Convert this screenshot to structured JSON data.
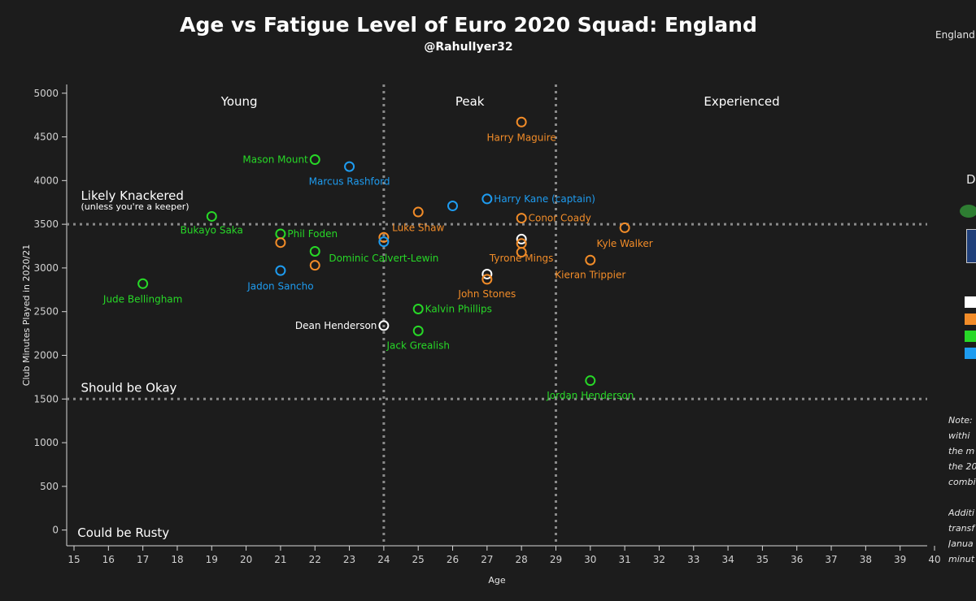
{
  "header": {
    "title": "Age vs Fatigue Level of Euro 2020 Squad: England",
    "subtitle": "@RahulIyer32",
    "team_label": "England"
  },
  "side_panel": {
    "letter": "D",
    "note_text": "Note:\nwithi\nthe m\nthe 20\ncombi\n\nAdditi\ntransf\nJanua\nminut"
  },
  "colors": {
    "background": "#1c1c1c",
    "goalkeeper": "#ffffff",
    "defender": "#f28c28",
    "midfielder": "#27d827",
    "forward": "#1e9cf0"
  },
  "chart_data": {
    "type": "scatter",
    "title": "Age vs Fatigue Level of Euro 2020 Squad: England",
    "xlabel": "Age",
    "ylabel": "Club Minutes Played in 2020/21",
    "xlim": [
      15,
      40
    ],
    "ylim": [
      -180,
      5100
    ],
    "xticks": [
      "15",
      "16",
      "17",
      "18",
      "19",
      "20",
      "21",
      "22",
      "23",
      "24",
      "25",
      "26",
      "27",
      "28",
      "29",
      "30",
      "31",
      "32",
      "33",
      "34",
      "35",
      "36",
      "37",
      "38",
      "39",
      "40"
    ],
    "yticks": [
      "0",
      "500",
      "1000",
      "1500",
      "2000",
      "2500",
      "3000",
      "3500",
      "4000",
      "4500",
      "5000"
    ],
    "grid": false,
    "vlines": [
      24,
      29
    ],
    "hlines": [
      1500,
      3500
    ],
    "zones": [
      {
        "text": "Young",
        "x": 19.8,
        "y": 4860
      },
      {
        "text": "Peak",
        "x": 26.5,
        "y": 4860
      },
      {
        "text": "Experienced",
        "x": 34.4,
        "y": 4860
      }
    ],
    "annotations": [
      {
        "text": "Likely Knackered",
        "x": 15.2,
        "y": 3780,
        "size": "large"
      },
      {
        "text": "(unless you're a keeper)",
        "x": 15.2,
        "y": 3670,
        "size": "small"
      },
      {
        "text": "Should be Okay",
        "x": 15.2,
        "y": 1580,
        "size": "large"
      },
      {
        "text": "Could be Rusty",
        "x": 15.1,
        "y": -80,
        "size": "large"
      }
    ],
    "points": [
      {
        "name": "Harry Maguire",
        "x": 28,
        "y": 4670,
        "color": "#f28c28",
        "lx": 28,
        "ly": 4490,
        "anchor": "middle"
      },
      {
        "name": "Mason Mount",
        "x": 22,
        "y": 4240,
        "color": "#27d827",
        "lx": 21.8,
        "ly": 4240,
        "anchor": "end"
      },
      {
        "name": "Marcus Rashford",
        "x": 23,
        "y": 4160,
        "color": "#1e9cf0",
        "lx": 23,
        "ly": 3990,
        "anchor": "middle"
      },
      {
        "name": "Harry Kane (captain)",
        "x": 27,
        "y": 3790,
        "color": "#1e9cf0",
        "lx": 27.2,
        "ly": 3790,
        "anchor": "start"
      },
      {
        "name": "",
        "x": 26,
        "y": 3710,
        "color": "#1e9cf0"
      },
      {
        "name": "",
        "x": 25,
        "y": 3640,
        "color": "#f28c28"
      },
      {
        "name": "Conor Coady",
        "x": 28,
        "y": 3570,
        "color": "#f28c28",
        "lx": 28.2,
        "ly": 3570,
        "anchor": "start"
      },
      {
        "name": "Bukayo Saka",
        "x": 19,
        "y": 3590,
        "color": "#27d827",
        "lx": 19,
        "ly": 3430,
        "anchor": "middle"
      },
      {
        "name": "Kyle Walker",
        "x": 31,
        "y": 3460,
        "color": "#f28c28",
        "lx": 31,
        "ly": 3280,
        "anchor": "middle"
      },
      {
        "name": "Luke Shaw",
        "x": 24,
        "y": 3350,
        "color": "#f28c28",
        "lx": 25,
        "ly": 3460,
        "anchor": "middle"
      },
      {
        "name": "Phil Foden",
        "x": 21,
        "y": 3390,
        "color": "#27d827",
        "lx": 21.2,
        "ly": 3390,
        "anchor": "start"
      },
      {
        "name": "",
        "x": 21,
        "y": 3290,
        "color": "#f28c28"
      },
      {
        "name": "",
        "x": 28,
        "y": 3330,
        "color": "#ffffff"
      },
      {
        "name": "",
        "x": 28,
        "y": 3280,
        "color": "#f28c28"
      },
      {
        "name": "",
        "x": 24,
        "y": 3300,
        "color": "#1e9cf0"
      },
      {
        "name": "Dominic Calvert-Lewin",
        "x": 22,
        "y": 3190,
        "color": "#27d827",
        "lx": 24,
        "ly": 3110,
        "anchor": "middle"
      },
      {
        "name": "Tyrone Mings",
        "x": 28,
        "y": 3180,
        "color": "#f28c28",
        "lx": 28,
        "ly": 3110,
        "anchor": "middle"
      },
      {
        "name": "Kieran Trippier",
        "x": 30,
        "y": 3090,
        "color": "#f28c28",
        "lx": 30,
        "ly": 2920,
        "anchor": "middle"
      },
      {
        "name": "",
        "x": 22,
        "y": 3030,
        "color": "#f28c28"
      },
      {
        "name": "Jadon Sancho",
        "x": 21,
        "y": 2970,
        "color": "#1e9cf0",
        "lx": 21,
        "ly": 2790,
        "anchor": "middle"
      },
      {
        "name": "",
        "x": 27,
        "y": 2930,
        "color": "#ffffff"
      },
      {
        "name": "John Stones",
        "x": 27,
        "y": 2870,
        "color": "#f28c28",
        "lx": 27,
        "ly": 2700,
        "anchor": "middle"
      },
      {
        "name": "Jude Bellingham",
        "x": 17,
        "y": 2820,
        "color": "#27d827",
        "lx": 17,
        "ly": 2640,
        "anchor": "middle"
      },
      {
        "name": "Kalvin Phillips",
        "x": 25,
        "y": 2530,
        "color": "#27d827",
        "lx": 25.2,
        "ly": 2530,
        "anchor": "start"
      },
      {
        "name": "Dean Henderson",
        "x": 24,
        "y": 2340,
        "color": "#ffffff",
        "lx": 23.8,
        "ly": 2340,
        "anchor": "end"
      },
      {
        "name": "Jack Grealish",
        "x": 25,
        "y": 2280,
        "color": "#27d827",
        "lx": 25,
        "ly": 2110,
        "anchor": "middle"
      },
      {
        "name": "Jordan Henderson",
        "x": 30,
        "y": 1710,
        "color": "#27d827",
        "lx": 30,
        "ly": 1540,
        "anchor": "middle"
      }
    ]
  }
}
